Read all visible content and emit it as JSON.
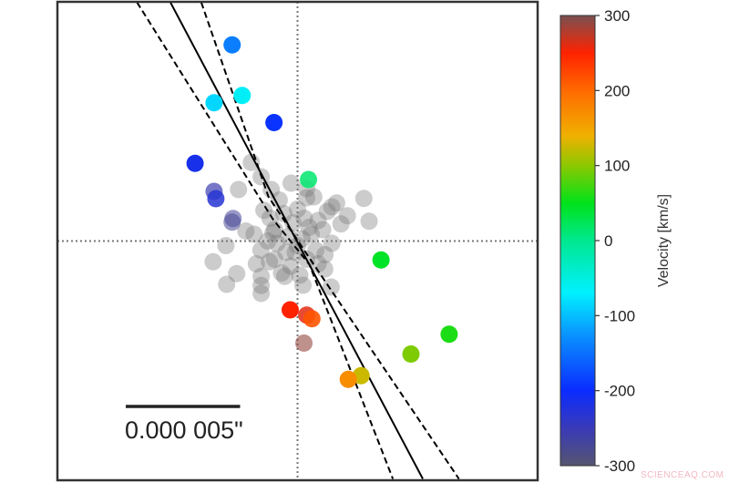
{
  "chart_data": {
    "type": "scatter",
    "title": "",
    "xlabel": "",
    "ylabel": "",
    "xlim": [
      -10.5,
      10.5
    ],
    "ylim": [
      -10.5,
      10.5
    ],
    "units_note": "micro-arcseconds relative to center",
    "grid": false,
    "crosshair_at": [
      0,
      0
    ],
    "scale_bar": {
      "length": 5,
      "label": "0.000 005\""
    },
    "colorbar": {
      "label": "Velocity [km/s]",
      "range": [
        -300,
        300
      ],
      "ticks": [
        300,
        200,
        100,
        0,
        -100,
        -200,
        -300
      ],
      "tick_labels": [
        "300",
        "200",
        "100",
        "0",
        "-100",
        "-200",
        "-300"
      ],
      "stops": [
        {
          "v": -300,
          "c": "#555570"
        },
        {
          "v": -250,
          "c": "#3a3ab8"
        },
        {
          "v": -200,
          "c": "#0a2cff"
        },
        {
          "v": -130,
          "c": "#0a8cff"
        },
        {
          "v": -70,
          "c": "#00f0ff"
        },
        {
          "v": 0,
          "c": "#00e890"
        },
        {
          "v": 50,
          "c": "#00e21a"
        },
        {
          "v": 100,
          "c": "#8cc800"
        },
        {
          "v": 140,
          "c": "#f0b000"
        },
        {
          "v": 200,
          "c": "#ff6a00"
        },
        {
          "v": 250,
          "c": "#ff2200"
        },
        {
          "v": 300,
          "c": "#7a5050"
        }
      ]
    },
    "colored_points": [
      {
        "x": -2.86,
        "y": 8.61,
        "v": -140
      },
      {
        "x": -2.42,
        "y": 6.39,
        "v": -65
      },
      {
        "x": -3.65,
        "y": 6.07,
        "v": -85
      },
      {
        "x": -1.03,
        "y": 5.2,
        "v": -195
      },
      {
        "x": -4.48,
        "y": 3.41,
        "v": -215
      },
      {
        "x": -3.65,
        "y": 2.18,
        "v": -255,
        "alpha": 0.7
      },
      {
        "x": -3.57,
        "y": 1.86,
        "v": -230,
        "alpha": 0.85
      },
      {
        "x": -2.82,
        "y": 0.99,
        "v": -270,
        "alpha": 0.55
      },
      {
        "x": -2.86,
        "y": 0.83,
        "v": -275,
        "alpha": 0.55
      },
      {
        "x": 0.48,
        "y": 2.7,
        "v": 15,
        "alpha": 0.85
      },
      {
        "x": 3.65,
        "y": -0.83,
        "v": 45
      },
      {
        "x": 6.63,
        "y": -4.09,
        "v": 60
      },
      {
        "x": 4.96,
        "y": -4.96,
        "v": 95
      },
      {
        "x": -0.32,
        "y": -3.02,
        "v": 250
      },
      {
        "x": 0.4,
        "y": -3.25,
        "v": 260,
        "alpha": 0.85
      },
      {
        "x": 0.63,
        "y": -3.41,
        "v": 215,
        "alpha": 0.9
      },
      {
        "x": 0.28,
        "y": -4.48,
        "v": 290,
        "alpha": 0.6
      },
      {
        "x": 2.78,
        "y": -5.91,
        "v": 125
      },
      {
        "x": 2.22,
        "y": -6.07,
        "v": 170
      }
    ],
    "no_velocity_points": [
      [
        -2.02,
        3.45
      ],
      [
        -1.59,
        2.82
      ],
      [
        -2.58,
        2.26
      ],
      [
        -1.15,
        2.26
      ],
      [
        2.9,
        1.87
      ],
      [
        3.13,
        0.87
      ],
      [
        2.18,
        1.11
      ],
      [
        -3.13,
        -0.2
      ],
      [
        -3.69,
        -0.91
      ],
      [
        -2.66,
        -1.43
      ],
      [
        -3.1,
        -1.9
      ],
      [
        -1.59,
        -1.55
      ],
      [
        -1.59,
        -2.3
      ],
      [
        -1.59,
        -1.95
      ],
      [
        1.19,
        -1.23
      ],
      [
        1.47,
        -2.02
      ],
      [
        0.24,
        -1.94
      ],
      [
        -0.56,
        -1.55
      ],
      [
        -2.26,
        0.44
      ],
      [
        -0.28,
        2.54
      ],
      [
        0.71,
        1.94
      ],
      [
        1.71,
        1.67
      ],
      [
        1.9,
        0.75
      ],
      [
        -1.47,
        1.35
      ],
      [
        -1.07,
        0.36
      ],
      [
        -1.23,
        -0.91
      ],
      [
        0.4,
        2.3
      ],
      [
        1.5,
        1.5
      ],
      [
        -1.0,
        0.5
      ],
      [
        -0.6,
        1.2
      ],
      [
        -0.2,
        0.8
      ],
      [
        0.3,
        1.0
      ],
      [
        0.6,
        0.3
      ],
      [
        0.0,
        -0.2
      ],
      [
        -0.5,
        -0.5
      ],
      [
        -1.0,
        -0.8
      ],
      [
        -0.3,
        -1.1
      ],
      [
        0.4,
        -0.8
      ],
      [
        0.8,
        -0.4
      ],
      [
        1.1,
        0.5
      ],
      [
        -1.3,
        0.0
      ],
      [
        0.2,
        0.1
      ],
      [
        -0.8,
        1.8
      ],
      [
        0.4,
        1.9
      ],
      [
        1.3,
        1.3
      ],
      [
        -0.1,
        -0.5
      ],
      [
        0.9,
        -1.0
      ],
      [
        -1.6,
        -0.4
      ],
      [
        0.0,
        1.4
      ],
      [
        -0.7,
        -1.4
      ],
      [
        0.5,
        0.6
      ],
      [
        1.5,
        -0.1
      ],
      [
        -1.2,
        1.0
      ],
      [
        -0.4,
        0.2
      ],
      [
        0.9,
        0.9
      ],
      [
        -1.9,
        0.3
      ],
      [
        -1.8,
        -1.0
      ],
      [
        0.1,
        -1.5
      ],
      [
        1.2,
        -0.6
      ],
      [
        -0.9,
        -0.1
      ]
    ],
    "no_velocity_color": "#7a7a7a",
    "lines": [
      {
        "style": "solid",
        "points": [
          [
            -5.56,
            10.48
          ],
          [
            5.48,
            -10.44
          ]
        ]
      },
      {
        "style": "dashed",
        "points": [
          [
            -7.02,
            10.48
          ],
          [
            -1.07,
            0.95
          ],
          [
            0.52,
            -1.03
          ],
          [
            4.17,
            -10.44
          ]
        ]
      },
      {
        "style": "dashed",
        "points": [
          [
            -4.21,
            10.48
          ],
          [
            -1.27,
            1.94
          ],
          [
            0.71,
            -1.03
          ],
          [
            7.06,
            -10.44
          ]
        ]
      }
    ]
  },
  "watermark": "SCIENCEAQ.COM"
}
